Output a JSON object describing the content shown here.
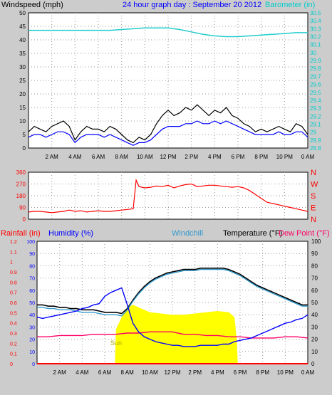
{
  "colors": {
    "background": "#cccccc",
    "plot_bg": "#ffffff",
    "grid": "#999999",
    "wind_gust": "#000000",
    "wind_avg": "#0000ff",
    "wind_min": "#808080",
    "barometer": "#22cccc",
    "direction": "#ff0000",
    "temperature": "#000000",
    "windchill": "#3399cc",
    "dewpoint": "#ff0066",
    "humidity": "#0000ff",
    "rainfall": "#ff0000",
    "sun": "#ffff00",
    "header_title": "#0000ff",
    "axis_cyan": "#00cccc",
    "axis_blue": "#0000ff",
    "axis_red": "#ff0000",
    "axis_black": "#000000"
  },
  "chart_data": [
    {
      "type": "line",
      "id": "wind_baro",
      "title": "24 hour graph day : September 20 2012",
      "ylabel": "Windspeed (mph)",
      "y2label": "Barometer (in)",
      "ylim": [
        0,
        50
      ],
      "y_ticks": [
        "0",
        "5",
        "10",
        "15",
        "20",
        "25",
        "30",
        "35",
        "40",
        "45",
        "50"
      ],
      "y2lim": [
        28.8,
        30.5
      ],
      "y2_ticks": [
        "28.8",
        "28.9",
        "29",
        "29.1",
        "29.2",
        "29.3",
        "29.4",
        "29.5",
        "29.6",
        "29.7",
        "29.8",
        "29.9",
        "30",
        "30.1",
        "30.2",
        "30.3",
        "30.4",
        "30.5"
      ],
      "x_ticks": [
        "2 AM",
        "4 AM",
        "6 AM",
        "8 AM",
        "10 AM",
        "12 PM",
        "2 PM",
        "4 PM",
        "6 PM",
        "8 PM",
        "10 PM",
        "0 AM"
      ],
      "xlim_hours": [
        0,
        24
      ],
      "grid": true,
      "series": [
        {
          "key": "gust",
          "color_key": "wind_gust",
          "x": [
            0,
            0.5,
            1,
            1.5,
            2,
            2.5,
            3,
            3.5,
            4,
            4.5,
            5,
            5.5,
            6,
            6.5,
            7,
            7.5,
            8,
            8.5,
            9,
            9.5,
            10,
            10.5,
            11,
            11.5,
            12,
            12.5,
            13,
            13.5,
            14,
            14.5,
            15,
            15.5,
            16,
            16.5,
            17,
            17.5,
            18,
            18.5,
            19,
            19.5,
            20,
            20.5,
            21,
            21.5,
            22,
            22.5,
            23,
            23.5,
            24
          ],
          "values": [
            6,
            8,
            7,
            6,
            8,
            9,
            10,
            8,
            3,
            6,
            8,
            7,
            7,
            6,
            8,
            7,
            5,
            3,
            2,
            4,
            3,
            5,
            9,
            12,
            14,
            12,
            13,
            15,
            14,
            16,
            14,
            12,
            14,
            13,
            15,
            12,
            11,
            9,
            8,
            6,
            7,
            6,
            7,
            8,
            7,
            6,
            9,
            8,
            5
          ]
        },
        {
          "key": "average",
          "color_key": "wind_avg",
          "x": [
            0,
            0.5,
            1,
            1.5,
            2,
            2.5,
            3,
            3.5,
            4,
            4.5,
            5,
            5.5,
            6,
            6.5,
            7,
            7.5,
            8,
            8.5,
            9,
            9.5,
            10,
            10.5,
            11,
            11.5,
            12,
            12.5,
            13,
            13.5,
            14,
            14.5,
            15,
            15.5,
            16,
            16.5,
            17,
            17.5,
            18,
            18.5,
            19,
            19.5,
            20,
            20.5,
            21,
            21.5,
            22,
            22.5,
            23,
            23.5,
            24
          ],
          "values": [
            4,
            5,
            5,
            4,
            5,
            6,
            6,
            5,
            2,
            4,
            5,
            5,
            5,
            4,
            5,
            4,
            3,
            2,
            1,
            2,
            2,
            3,
            5,
            7,
            8,
            8,
            8,
            9,
            9,
            10,
            9,
            9,
            10,
            9,
            10,
            9,
            8,
            7,
            6,
            5,
            5,
            5,
            5,
            6,
            5,
            5,
            6,
            6,
            4
          ]
        },
        {
          "key": "barometer",
          "axis": "y2",
          "color_key": "barometer",
          "x": [
            0,
            1,
            2,
            3,
            4,
            5,
            6,
            7,
            8,
            9,
            10,
            11,
            12,
            13,
            14,
            15,
            16,
            17,
            18,
            19,
            20,
            21,
            22,
            23,
            24
          ],
          "values": [
            30.28,
            30.28,
            30.28,
            30.28,
            30.28,
            30.28,
            30.28,
            30.28,
            30.29,
            30.3,
            30.31,
            30.31,
            30.31,
            30.29,
            30.26,
            30.23,
            30.21,
            30.2,
            30.2,
            30.21,
            30.22,
            30.23,
            30.24,
            30.25,
            30.25
          ]
        }
      ]
    },
    {
      "type": "scatter",
      "id": "direction",
      "ylabel": "Wind direction",
      "ylim": [
        0,
        360
      ],
      "y_ticks": [
        "0",
        "90",
        "180",
        "270",
        "360"
      ],
      "y2_ticks": [
        "N",
        "E",
        "S",
        "W",
        "N"
      ],
      "xlim_hours": [
        0,
        24
      ],
      "grid": true,
      "series": [
        {
          "key": "direction",
          "color_key": "direction",
          "x": [
            0,
            0.5,
            1,
            1.5,
            2,
            2.5,
            3,
            3.5,
            4,
            4.5,
            5,
            5.5,
            6,
            6.5,
            7,
            7.5,
            8,
            8.5,
            9,
            9.25,
            9.5,
            10,
            10.5,
            11,
            11.5,
            12,
            12.5,
            13,
            13.5,
            14,
            14.5,
            15,
            15.5,
            16,
            16.5,
            17,
            17.5,
            18,
            18.5,
            19,
            19.5,
            20,
            20.5,
            21,
            21.5,
            22,
            22.5,
            23,
            23.5,
            24
          ],
          "values": [
            55,
            60,
            60,
            55,
            50,
            55,
            60,
            70,
            60,
            65,
            55,
            60,
            65,
            60,
            60,
            65,
            70,
            75,
            80,
            300,
            250,
            240,
            245,
            255,
            250,
            260,
            240,
            255,
            265,
            270,
            250,
            255,
            260,
            260,
            255,
            250,
            245,
            250,
            240,
            220,
            190,
            160,
            130,
            120,
            110,
            100,
            90,
            80,
            70,
            60
          ]
        }
      ]
    },
    {
      "type": "line",
      "id": "temp_hum",
      "ylabel": "Rainfall (in)",
      "y2label": "Humidity (%)",
      "y3label": "Windchill",
      "y4label": "Temperature (°F)",
      "y5label": "Dew Point (°F)",
      "rain_ticks": [
        "0",
        "0.1",
        "0.2",
        "0.3",
        "0.4",
        "0.5",
        "0.6",
        "0.7",
        "0.8",
        "0.9",
        "1",
        "1.1",
        "1.2"
      ],
      "hum_ticks": [
        "0",
        "10",
        "20",
        "30",
        "40",
        "50",
        "60",
        "70",
        "80",
        "90",
        "100"
      ],
      "temp_ticks": [
        "0",
        "10",
        "20",
        "30",
        "40",
        "50",
        "60",
        "70",
        "80",
        "90",
        "100"
      ],
      "ylim": [
        0,
        100
      ],
      "xlim_hours": [
        0,
        24
      ],
      "x_ticks": [
        "2 AM",
        "4 AM",
        "6 AM",
        "8 AM",
        "10 AM",
        "12 PM",
        "2 PM",
        "4 PM",
        "6 PM",
        "8 PM",
        "10 PM",
        "0 AM"
      ],
      "sun_label": "Sun",
      "grid": true,
      "series": [
        {
          "key": "sun",
          "color_key": "sun",
          "x": [
            6.9,
            7.0,
            7.5,
            8.0,
            8.5,
            9.0,
            9.5,
            10,
            11,
            12,
            13,
            14,
            15,
            16,
            17,
            17.5,
            17.7,
            17.8
          ],
          "values": [
            0,
            28,
            38,
            46,
            48,
            46,
            44,
            42,
            41,
            40,
            40,
            41,
            42,
            43,
            42,
            38,
            20,
            0
          ]
        },
        {
          "key": "temperature",
          "color_key": "temperature",
          "x": [
            0,
            0.5,
            1,
            1.5,
            2,
            2.5,
            3,
            3.5,
            4,
            4.5,
            5,
            5.5,
            6,
            6.5,
            7,
            7.5,
            8,
            8.5,
            9,
            9.5,
            10,
            10.5,
            11,
            11.5,
            12,
            12.5,
            13,
            13.5,
            14,
            14.5,
            15,
            15.5,
            16,
            16.5,
            17,
            17.5,
            18,
            18.5,
            19,
            19.5,
            20,
            20.5,
            21,
            21.5,
            22,
            22.5,
            23,
            23.5,
            24
          ],
          "values": [
            48,
            48,
            47,
            47,
            46,
            46,
            45,
            45,
            44,
            44,
            44,
            43,
            42,
            42,
            42,
            41,
            45,
            52,
            58,
            63,
            67,
            70,
            72,
            74,
            75,
            76,
            77,
            77,
            77,
            78,
            78,
            78,
            78,
            78,
            77,
            75,
            73,
            70,
            67,
            64,
            62,
            60,
            58,
            56,
            54,
            52,
            50,
            48,
            48
          ]
        },
        {
          "key": "windchill",
          "color_key": "windchill",
          "x": [
            0,
            0.5,
            1,
            1.5,
            2,
            2.5,
            3,
            3.5,
            4,
            4.5,
            5,
            5.5,
            6,
            6.5,
            7,
            7.5,
            8,
            8.5,
            9,
            9.5,
            10,
            10.5,
            11,
            11.5,
            12,
            12.5,
            13,
            13.5,
            14,
            14.5,
            15,
            15.5,
            16,
            16.5,
            17,
            17.5,
            18,
            18.5,
            19,
            19.5,
            20,
            20.5,
            21,
            21.5,
            22,
            22.5,
            23,
            23.5,
            24
          ],
          "values": [
            46,
            46,
            45,
            45,
            44,
            44,
            44,
            43,
            42,
            42,
            42,
            41,
            40,
            40,
            40,
            39,
            44,
            51,
            57,
            62,
            66,
            69,
            71,
            73,
            74,
            75,
            76,
            76,
            76,
            77,
            77,
            77,
            77,
            77,
            76,
            74,
            72,
            69,
            66,
            63,
            61,
            59,
            57,
            55,
            53,
            51,
            49,
            47,
            47
          ]
        },
        {
          "key": "dewpoint",
          "color_key": "dewpoint",
          "x": [
            0,
            1,
            2,
            3,
            4,
            5,
            6,
            7,
            8,
            9,
            10,
            11,
            12,
            13,
            14,
            15,
            16,
            17,
            18,
            19,
            20,
            21,
            22,
            23,
            24
          ],
          "values": [
            22,
            22,
            23,
            23,
            23,
            24,
            24,
            24,
            25,
            25,
            26,
            26,
            26,
            24,
            24,
            23,
            23,
            22,
            22,
            21,
            21,
            21,
            22,
            22,
            21
          ]
        },
        {
          "key": "humidity",
          "color_key": "humidity",
          "x": [
            0,
            0.5,
            1,
            1.5,
            2,
            2.5,
            3,
            3.5,
            4,
            4.5,
            5,
            5.5,
            6,
            6.5,
            7,
            7.5,
            8,
            8.5,
            9,
            9.5,
            10,
            10.5,
            11,
            11.5,
            12,
            12.5,
            13,
            13.5,
            14,
            14.5,
            15,
            15.5,
            16,
            16.5,
            17,
            17.5,
            18,
            18.5,
            19,
            19.5,
            20,
            20.5,
            21,
            21.5,
            22,
            22.5,
            23,
            23.5,
            24
          ],
          "values": [
            38,
            37,
            38,
            39,
            40,
            41,
            42,
            43,
            45,
            46,
            48,
            49,
            55,
            58,
            60,
            62,
            48,
            33,
            26,
            22,
            20,
            18,
            17,
            16,
            15,
            15,
            14,
            14,
            14,
            15,
            15,
            15,
            15,
            16,
            16,
            18,
            19,
            20,
            21,
            23,
            25,
            27,
            29,
            31,
            33,
            34,
            36,
            37,
            40
          ]
        },
        {
          "key": "rainfall",
          "color_key": "rainfall",
          "x": [
            0,
            24
          ],
          "values": [
            0,
            0
          ]
        }
      ]
    }
  ]
}
